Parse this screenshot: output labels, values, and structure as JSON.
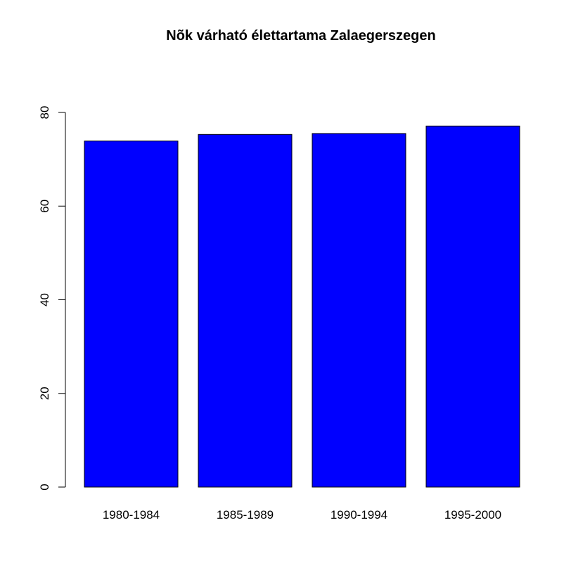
{
  "chart_data": {
    "type": "bar",
    "title": "Nõk várható élettartama Zalaegerszegen",
    "categories": [
      "1980-1984",
      "1985-1989",
      "1990-1994",
      "1995-2000"
    ],
    "values": [
      73.9,
      75.3,
      75.5,
      77.1
    ],
    "xlabel": "",
    "ylabel": "",
    "ylim": [
      0,
      80
    ],
    "yticks": [
      0,
      20,
      40,
      60,
      80
    ],
    "bar_color": "#0000ff",
    "bar_border_color": "#000000",
    "grid": false,
    "legend": "none"
  }
}
